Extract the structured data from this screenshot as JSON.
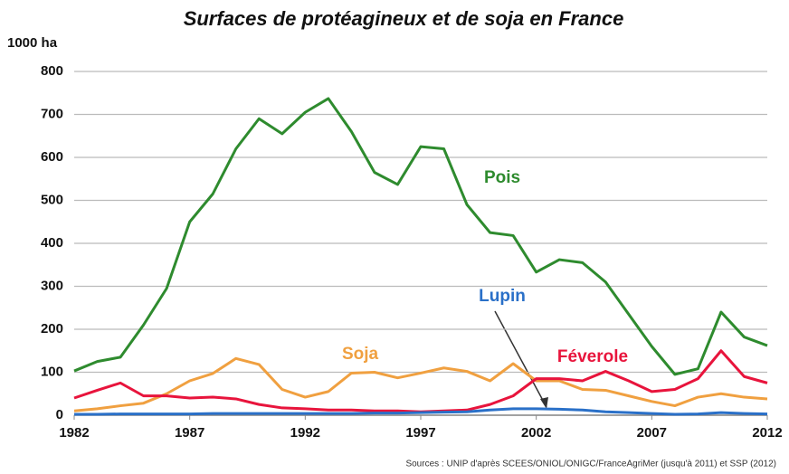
{
  "chart_data": {
    "type": "line",
    "title": "Surfaces de protéagineux et de soja en France",
    "y_label": "1000 ha",
    "source": "Sources : UNIP d'après SCEES/ONIOL/ONIGC/FranceAgriMer (jusqu'à 2011)  et SSP (2012)",
    "x": [
      1982,
      1983,
      1984,
      1985,
      1986,
      1987,
      1988,
      1989,
      1990,
      1991,
      1992,
      1993,
      1994,
      1995,
      1996,
      1997,
      1998,
      1999,
      2000,
      2001,
      2002,
      2003,
      2004,
      2005,
      2006,
      2007,
      2008,
      2009,
      2010,
      2011,
      2012
    ],
    "series": [
      {
        "name": "Pois",
        "color": "#2e8b2e",
        "values": [
          103,
          125,
          135,
          210,
          295,
          450,
          515,
          620,
          690,
          655,
          705,
          737,
          660,
          565,
          537,
          625,
          620,
          490,
          425,
          418,
          333,
          362,
          355,
          310,
          235,
          160,
          95,
          108,
          240,
          182,
          162
        ]
      },
      {
        "name": "Soja",
        "color": "#f0a040",
        "values": [
          10,
          15,
          22,
          28,
          50,
          80,
          97,
          132,
          118,
          60,
          42,
          55,
          98,
          100,
          87,
          98,
          110,
          102,
          80,
          120,
          80,
          80,
          60,
          58,
          45,
          32,
          22,
          42,
          50,
          42,
          38
        ]
      },
      {
        "name": "Féverole",
        "color": "#e8143c",
        "values": [
          40,
          58,
          75,
          45,
          45,
          40,
          42,
          38,
          25,
          17,
          15,
          12,
          12,
          10,
          10,
          8,
          10,
          12,
          25,
          45,
          85,
          85,
          80,
          102,
          80,
          55,
          60,
          85,
          150,
          90,
          75
        ]
      },
      {
        "name": "Lupin",
        "color": "#2a70c8",
        "values": [
          2,
          2,
          3,
          3,
          3,
          3,
          4,
          4,
          4,
          4,
          4,
          4,
          4,
          5,
          5,
          6,
          7,
          8,
          12,
          15,
          15,
          14,
          12,
          8,
          6,
          4,
          2,
          3,
          6,
          4,
          3
        ]
      }
    ],
    "xlim": [
      1982,
      2012
    ],
    "xticks": [
      1982,
      1987,
      1992,
      1997,
      2002,
      2007,
      2012
    ],
    "ylim": [
      0,
      800
    ],
    "yticks": [
      0,
      100,
      200,
      300,
      400,
      500,
      600,
      700,
      800
    ],
    "grid": true
  }
}
